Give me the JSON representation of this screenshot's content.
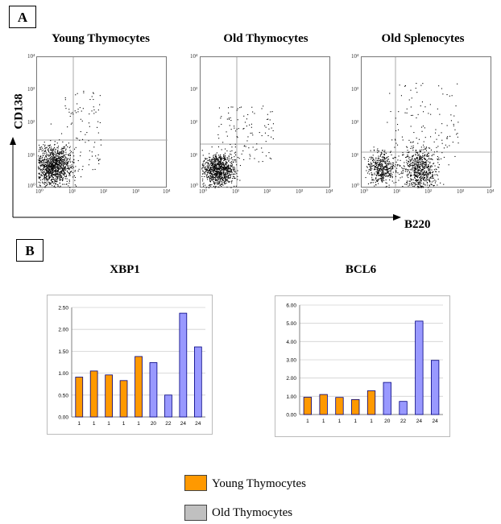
{
  "panel_labels": {
    "a": "A",
    "b": "B"
  },
  "flow": {
    "plots": [
      {
        "title": "Young Thymocytes"
      },
      {
        "title": "Old Thymocytes"
      },
      {
        "title": "Old Splenocytes"
      }
    ],
    "y_axis_title": "CD138",
    "x_axis_title": "B220",
    "ticks": [
      "10⁰",
      "10¹",
      "10²",
      "10³",
      "10⁴"
    ]
  },
  "chart_data": [
    {
      "type": "bar",
      "title": "XBP1",
      "categories": [
        "1",
        "1",
        "1",
        "1",
        "1",
        "20",
        "22",
        "24",
        "24"
      ],
      "values": [
        0.91,
        1.05,
        0.96,
        0.83,
        1.38,
        1.24,
        0.5,
        2.37,
        1.6
      ],
      "groups": [
        "Young Thymocytes",
        "Young Thymocytes",
        "Young Thymocytes",
        "Young Thymocytes",
        "Young Thymocytes",
        "Old Thymocytes",
        "Old Thymocytes",
        "Old Thymocytes",
        "Old Thymocytes"
      ],
      "ylim": [
        0,
        2.5
      ],
      "yticks": [
        "0.00",
        "0.50",
        "1.00",
        "1.50",
        "2.00",
        "2.50"
      ],
      "ytick_values": [
        0,
        0.5,
        1,
        1.5,
        2,
        2.5
      ],
      "xlabel": "",
      "ylabel": "",
      "grid": true
    },
    {
      "type": "bar",
      "title": "BCL6",
      "categories": [
        "1",
        "1",
        "1",
        "1",
        "1",
        "20",
        "22",
        "24",
        "24"
      ],
      "values": [
        0.95,
        1.1,
        0.94,
        0.82,
        1.3,
        1.76,
        0.72,
        5.12,
        2.97
      ],
      "groups": [
        "Young Thymocytes",
        "Young Thymocytes",
        "Young Thymocytes",
        "Young Thymocytes",
        "Young Thymocytes",
        "Old Thymocytes",
        "Old Thymocytes",
        "Old Thymocytes",
        "Old Thymocytes"
      ],
      "ylim": [
        0,
        6
      ],
      "yticks": [
        "0.00",
        "1.00",
        "2.00",
        "3.00",
        "4.00",
        "5.00",
        "6.00"
      ],
      "ytick_values": [
        0,
        1,
        2,
        3,
        4,
        5,
        6
      ],
      "xlabel": "",
      "ylabel": "",
      "grid": true
    }
  ],
  "legend": [
    {
      "label": "Young Thymocytes",
      "color": "#ff9900"
    },
    {
      "label": "Old Thymocytes",
      "color": "#c0c0c0"
    }
  ],
  "colors": {
    "young_bar": "#ff9900",
    "old_bar": "#9999ff",
    "bar_outline": "#000080"
  }
}
